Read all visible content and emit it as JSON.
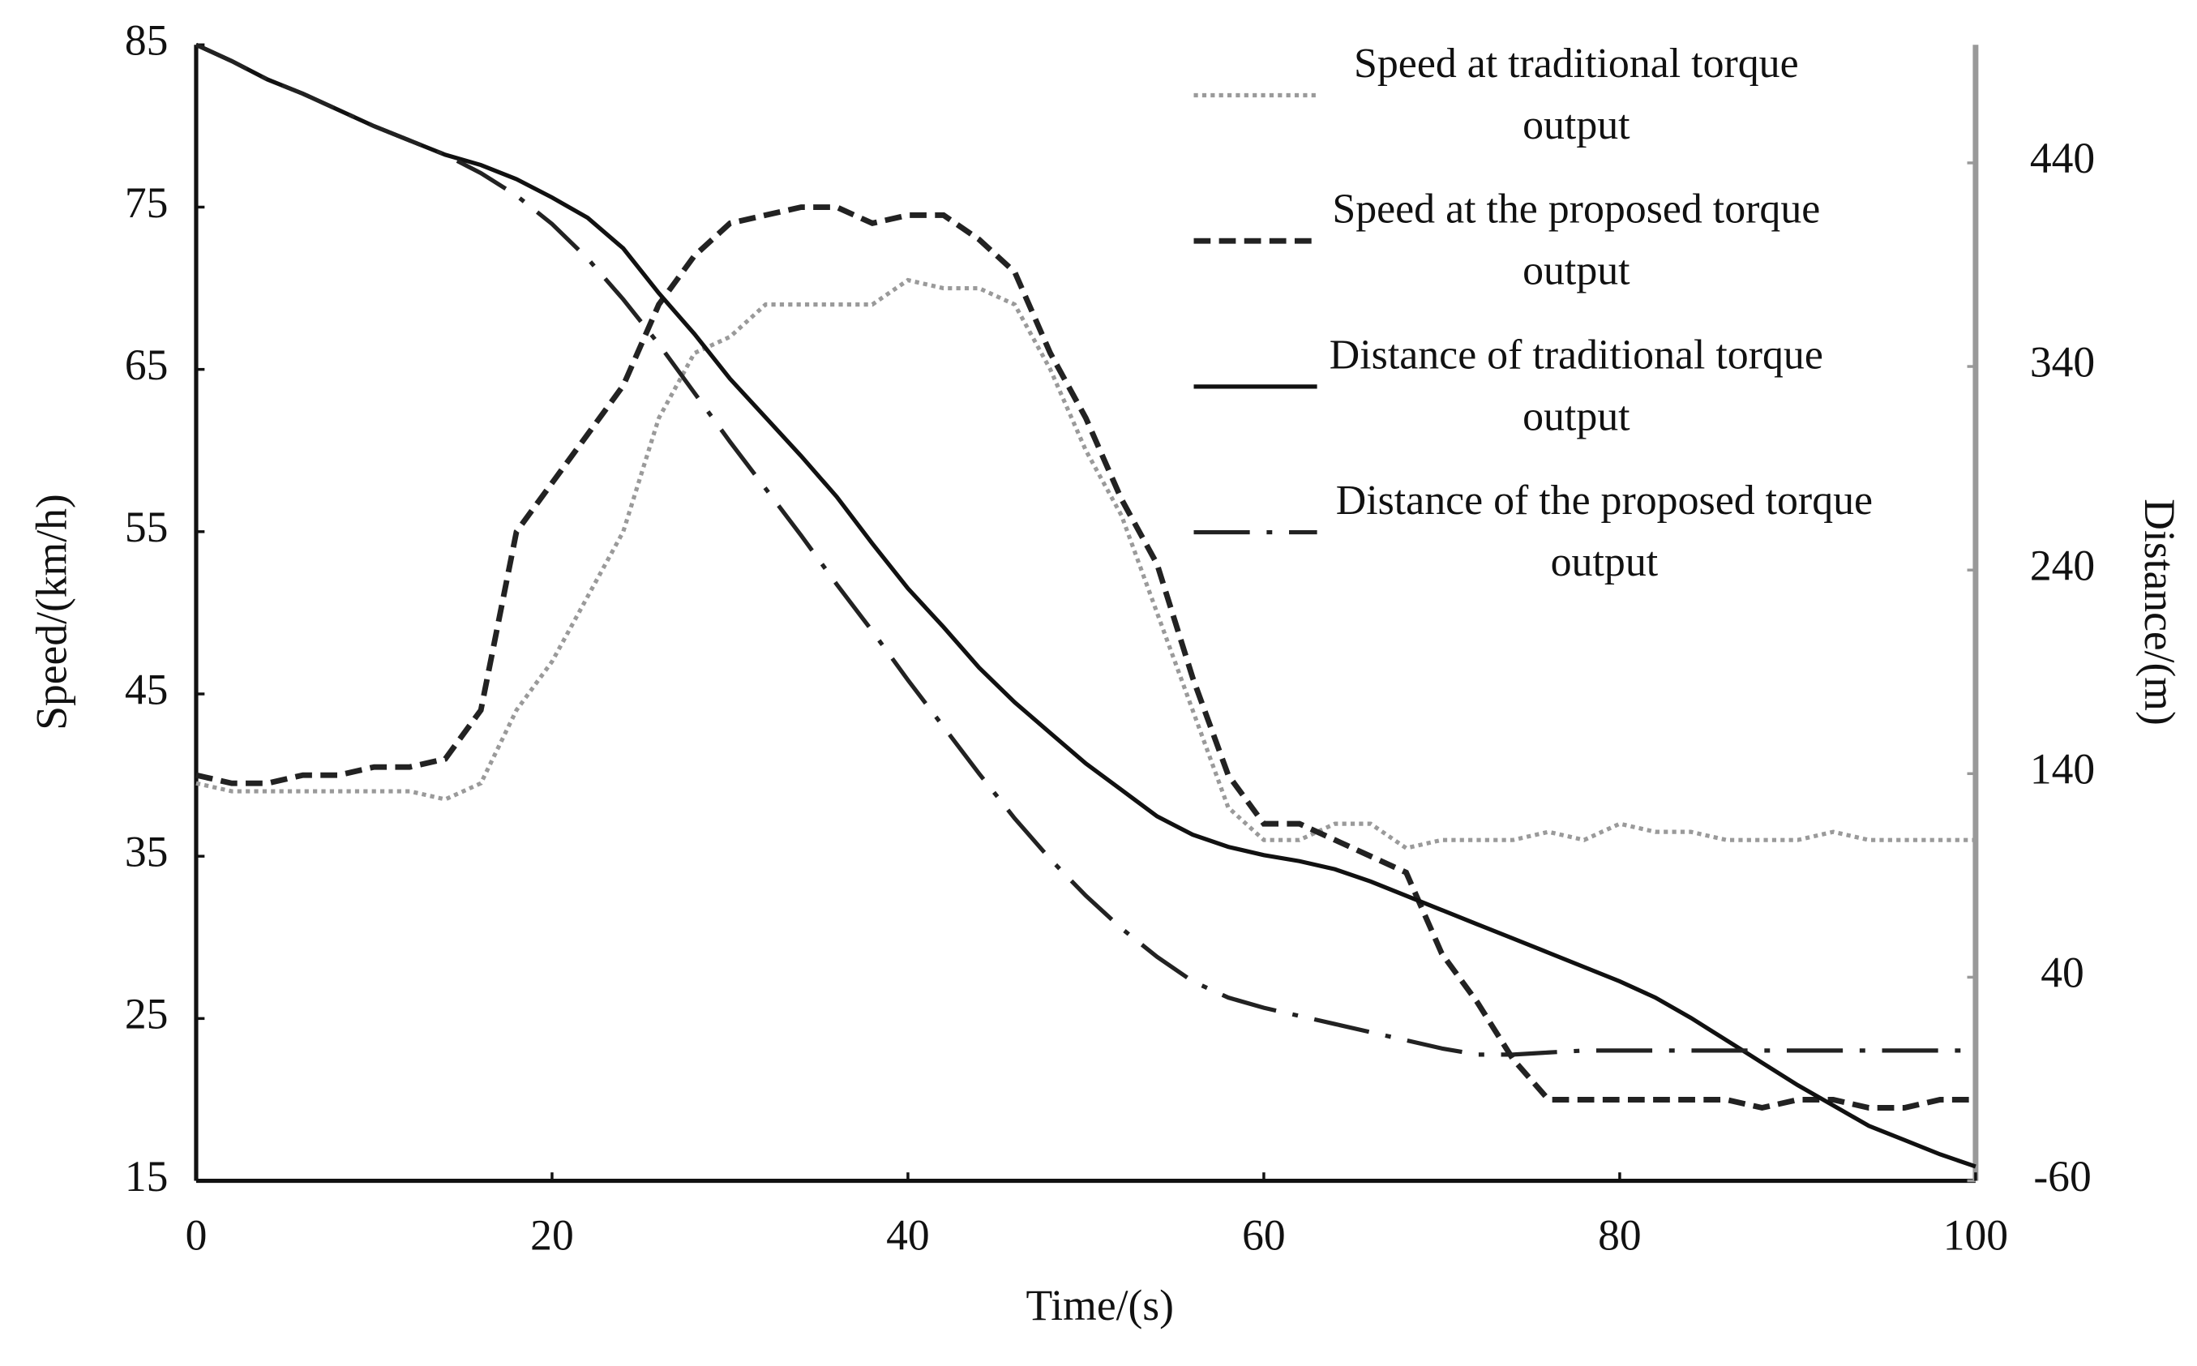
{
  "chart_data": {
    "type": "line",
    "xlabel": "Time/(s)",
    "ylabel": "Speed/(km/h)",
    "y2label": "Distance/(m)",
    "x": [
      0,
      2,
      4,
      6,
      8,
      10,
      12,
      14,
      16,
      18,
      20,
      22,
      24,
      26,
      28,
      30,
      32,
      34,
      36,
      38,
      40,
      42,
      44,
      46,
      48,
      50,
      52,
      54,
      56,
      58,
      60,
      62,
      64,
      66,
      68,
      70,
      72,
      74,
      76,
      78,
      80,
      82,
      84,
      86,
      88,
      90,
      92,
      94,
      96,
      98,
      100
    ],
    "xlim": [
      0,
      100
    ],
    "xticks": [
      0,
      20,
      40,
      60,
      80,
      100
    ],
    "ylim": [
      15,
      85
    ],
    "yticks": [
      15,
      25,
      35,
      45,
      55,
      65,
      75,
      85
    ],
    "y2lim": [
      -60,
      498
    ],
    "y2ticks": [
      -60,
      40,
      140,
      240,
      340,
      440
    ],
    "series": [
      {
        "name": "Speed at traditional torque output",
        "color": "#9a9a9a",
        "linestyle": "dotted",
        "values": [
          39.5,
          39,
          39,
          39,
          39,
          39,
          39,
          38.5,
          39.5,
          44,
          47,
          51,
          55,
          62,
          66,
          67,
          69,
          69,
          69,
          69,
          70.5,
          70,
          70,
          69,
          65,
          60,
          56,
          50,
          44,
          38,
          36,
          36,
          37,
          37,
          35.5,
          36,
          36,
          36,
          36.5,
          36,
          37,
          36.5,
          36.5,
          36,
          36,
          36,
          36.5,
          36,
          36,
          36,
          36
        ]
      },
      {
        "name": "Speed at the proposed torque output",
        "color": "#222222",
        "linestyle": "dashed",
        "values": [
          40,
          39.5,
          39.5,
          40,
          40,
          40.5,
          40.5,
          41,
          44,
          55,
          58,
          61,
          64,
          69,
          72,
          74,
          74.5,
          75,
          75,
          74,
          74.5,
          74.5,
          73,
          71,
          66,
          62,
          57,
          53,
          46,
          40,
          37,
          37,
          36,
          35,
          34,
          29,
          26,
          22.5,
          20,
          20,
          20,
          20,
          20,
          20,
          19.5,
          20,
          20,
          19.5,
          19.5,
          20,
          20
        ]
      },
      {
        "name": "Distance of traditional torque output",
        "color": "#111111",
        "linestyle": "solid",
        "axis": "y2",
        "values": [
          498,
          490,
          481,
          474,
          466,
          458,
          451,
          444,
          439,
          432,
          423,
          413,
          398,
          376,
          356,
          334,
          315,
          296,
          276,
          253,
          231,
          212,
          192,
          175,
          160,
          145,
          132,
          119,
          110,
          104,
          100,
          97,
          93,
          87,
          80,
          73,
          66,
          59,
          52,
          45,
          38,
          30,
          20,
          9,
          -2,
          -13,
          -23,
          -33,
          -40,
          -47,
          -53
        ]
      },
      {
        "name": "Distance of the proposed torque output",
        "color": "#222222",
        "linestyle": "dashdot",
        "axis": "y2",
        "values": [
          498,
          490,
          481,
          474,
          466,
          458,
          451,
          444,
          435,
          424,
          410,
          393,
          373,
          351,
          327,
          303,
          280,
          257,
          233,
          210,
          186,
          163,
          140,
          118,
          98,
          80,
          64,
          50,
          38,
          30,
          25,
          21,
          17,
          13,
          9,
          5,
          2,
          2,
          3,
          4,
          4,
          4,
          4,
          4,
          4,
          4,
          4,
          4,
          4,
          4,
          4
        ]
      }
    ],
    "legend": "upper right"
  }
}
